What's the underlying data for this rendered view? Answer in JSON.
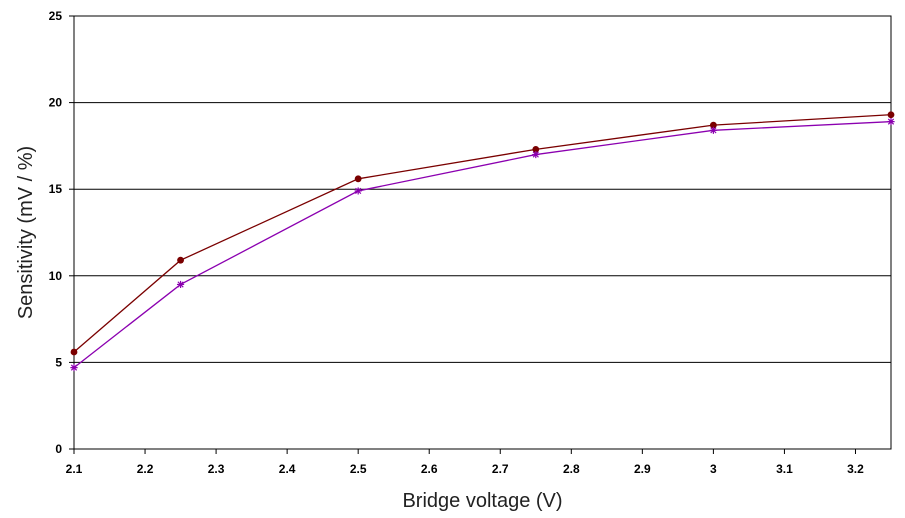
{
  "chart_data": {
    "type": "line",
    "title": "",
    "xlabel": "Bridge voltage (V)",
    "ylabel": "Sensitivity (mV / %)",
    "xlim": [
      2.1,
      3.25
    ],
    "ylim": [
      0,
      25
    ],
    "x_ticks": [
      "2.1",
      "2.2",
      "2.3",
      "2.4",
      "2.5",
      "2.6",
      "2.7",
      "2.8",
      "2.9",
      "3",
      "3.1",
      "3.2"
    ],
    "y_ticks": [
      "0",
      "5",
      "10",
      "15",
      "20",
      "25"
    ],
    "grid": "horizontal",
    "legend": "none",
    "series": [
      {
        "color": "#7a0000",
        "marker": "circle",
        "points": [
          {
            "x": 2.1,
            "y": 5.6
          },
          {
            "x": 2.25,
            "y": 10.9
          },
          {
            "x": 2.5,
            "y": 15.6
          },
          {
            "x": 2.75,
            "y": 17.3
          },
          {
            "x": 3.0,
            "y": 18.7
          },
          {
            "x": 3.25,
            "y": 19.3
          }
        ]
      },
      {
        "color": "#8b00b0",
        "marker": "star",
        "points": [
          {
            "x": 2.1,
            "y": 4.7
          },
          {
            "x": 2.25,
            "y": 9.5
          },
          {
            "x": 2.5,
            "y": 14.9
          },
          {
            "x": 2.75,
            "y": 17.0
          },
          {
            "x": 3.0,
            "y": 18.4
          },
          {
            "x": 3.25,
            "y": 18.9
          }
        ]
      }
    ]
  }
}
